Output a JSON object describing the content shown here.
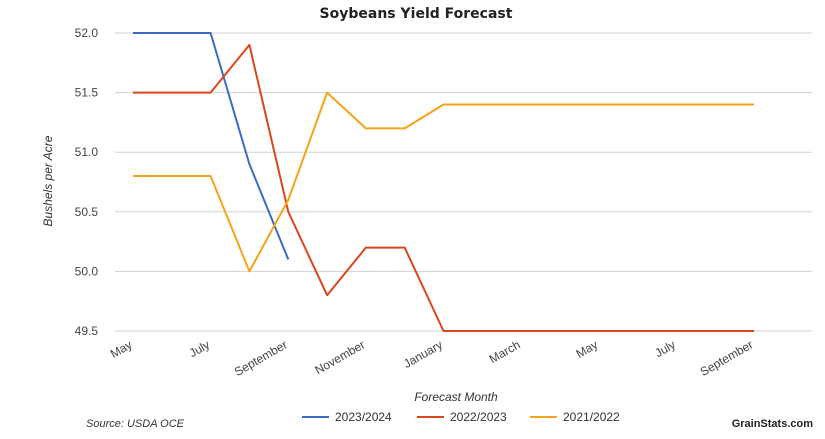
{
  "chart_data": {
    "type": "line",
    "title": "Soybeans Yield Forecast",
    "xlabel": "Forecast Month",
    "ylabel": "Bushels per Acre",
    "x": [
      "May",
      "June",
      "July",
      "August",
      "September",
      "October",
      "November",
      "December",
      "January",
      "February",
      "March",
      "April",
      "May",
      "June",
      "July",
      "August",
      "September"
    ],
    "x_tick_labels": [
      "May",
      "July",
      "September",
      "November",
      "January",
      "March",
      "May",
      "July",
      "September"
    ],
    "y_ticks": [
      "49.5",
      "50.0",
      "50.5",
      "51.0",
      "51.5",
      "52.0"
    ],
    "ylim": [
      49.5,
      52.0
    ],
    "grid": true,
    "legend_position": "bottom",
    "series": [
      {
        "name": "2023/2024",
        "color": "#3b6ac4",
        "values": [
          52.0,
          52.0,
          52.0,
          50.9,
          50.1,
          null,
          null,
          null,
          null,
          null,
          null,
          null,
          null,
          null,
          null,
          null,
          null
        ]
      },
      {
        "name": "2022/2023",
        "color": "#d9461d",
        "values": [
          51.5,
          51.5,
          51.5,
          51.9,
          50.5,
          49.8,
          50.2,
          50.2,
          49.5,
          49.5,
          49.5,
          49.5,
          49.5,
          49.5,
          49.5,
          49.5,
          49.5
        ]
      },
      {
        "name": "2021/2022",
        "color": "#f5a31a",
        "values": [
          50.8,
          50.8,
          50.8,
          50.0,
          50.6,
          51.5,
          51.2,
          51.2,
          51.4,
          51.4,
          51.4,
          51.4,
          51.4,
          51.4,
          51.4,
          51.4,
          51.4
        ]
      }
    ]
  },
  "footer": {
    "source": "Source: USDA OCE",
    "brand": "GrainStats.com"
  }
}
